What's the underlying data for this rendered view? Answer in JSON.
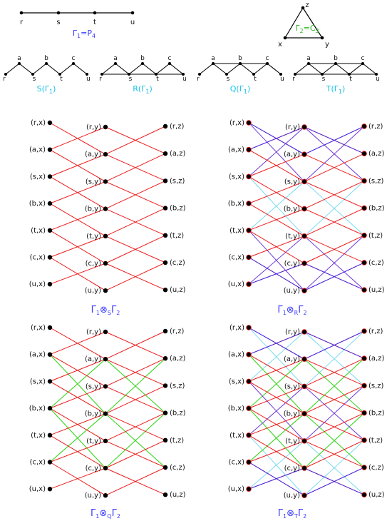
{
  "colors": {
    "red": "#ee1c1c",
    "blue": "#2b2bff",
    "purple": "#7a2bd6",
    "cyan": "#6fd8ef",
    "green": "#37d61e",
    "black": "#000000",
    "label_blue": "#3b3bff",
    "label_cyan": "#19c2e6",
    "label_green": "#2bb81c"
  },
  "p4": {
    "vertices": [
      "r",
      "s",
      "t",
      "u"
    ],
    "caption": "Γ",
    "caption_sub": "1",
    "caption_rest": "=P",
    "caption_rest_sub": "4"
  },
  "c3": {
    "vertices": [
      "z",
      "x",
      "y"
    ],
    "caption": "Γ",
    "caption_sub": "2",
    "caption_rest": "=C",
    "caption_rest_sub": "3"
  },
  "operators": [
    {
      "name": "S",
      "label": "S(Γ",
      "label_sub": "1",
      "label_end": ")",
      "top": [
        "a",
        "b",
        "c"
      ],
      "bottom": [
        "r",
        "s",
        "t",
        "u"
      ]
    },
    {
      "name": "R",
      "label": "R(Γ",
      "label_sub": "1",
      "label_end": ")",
      "top": [
        "a",
        "b",
        "c"
      ],
      "bottom": [
        "r",
        "s",
        "t",
        "u"
      ]
    },
    {
      "name": "Q",
      "label": "Q(Γ",
      "label_sub": "1",
      "label_end": ")",
      "top": [
        "a",
        "b",
        "c"
      ],
      "bottom": [
        "r",
        "s",
        "t",
        "u"
      ]
    },
    {
      "name": "T",
      "label": "T(Γ",
      "label_sub": "1",
      "label_end": ")",
      "top": [
        "a",
        "b",
        "c"
      ],
      "bottom": [
        "r",
        "s",
        "t",
        "u"
      ]
    }
  ],
  "products": [
    {
      "op": "S",
      "col1": [
        "(r,x)",
        "(a,x)",
        "(s,x)",
        "(b,x)",
        "(t,x)",
        "(c,x)",
        "(u,x)"
      ],
      "col2": [
        "(r,y)",
        "(a,y)",
        "(s,y)",
        "(b,y)",
        "(t,y)",
        "(c,y)",
        "(u,y)"
      ],
      "col3": [
        "(r,z)",
        "(a,z)",
        "(s,z)",
        "(b,z)",
        "(t,z)",
        "(c,z)",
        "(u,z)"
      ],
      "caption": "Γ",
      "sub1": "1",
      "otimes": "⊗",
      "opsub": "S",
      "cap2": "Γ",
      "sub2": "2"
    },
    {
      "op": "R",
      "col1": [
        "(r,x)",
        "(a,x)",
        "(s,x)",
        "(b,x)",
        "(t,x)",
        "(c,x)",
        "(u,x)"
      ],
      "col2": [
        "(r,y)",
        "(a,y)",
        "(s,y)",
        "(b,y)",
        "(t,y)",
        "(c,y)",
        "(u,y)"
      ],
      "col3": [
        "(r,z)",
        "(a,z)",
        "(s,z)",
        "(b,z)",
        "(t,z)",
        "(c,z)",
        "(u,z)"
      ],
      "caption": "Γ",
      "sub1": "1",
      "otimes": "⊗",
      "opsub": "R",
      "cap2": "Γ",
      "sub2": "2"
    },
    {
      "op": "Q",
      "col1": [
        "(r,x)",
        "(a,x)",
        "(s,x)",
        "(b,x)",
        "(t,x)",
        "(c,x)",
        "(u,x)"
      ],
      "col2": [
        "(r,y)",
        "(a,y)",
        "(s,y)",
        "(b,y)",
        "(t,y)",
        "(c,y)",
        "(u,y)"
      ],
      "col3": [
        "(r,z)",
        "(a,z)",
        "(s,z)",
        "(b,z)",
        "(t,z)",
        "(c,z)",
        "(u,z)"
      ],
      "caption": "Γ",
      "sub1": "1",
      "otimes": "⊗",
      "opsub": "Q",
      "cap2": "Γ",
      "sub2": "2"
    },
    {
      "op": "T",
      "col1": [
        "(r,x)",
        "(a,x)",
        "(s,x)",
        "(b,x)",
        "(t,x)",
        "(c,x)",
        "(u,x)"
      ],
      "col2": [
        "(r,y)",
        "(a,y)",
        "(s,y)",
        "(b,y)",
        "(t,y)",
        "(c,y)",
        "(u,y)"
      ],
      "col3": [
        "(r,z)",
        "(a,z)",
        "(s,z)",
        "(b,z)",
        "(t,z)",
        "(c,z)",
        "(u,z)"
      ],
      "caption": "Γ",
      "sub1": "1",
      "otimes": "⊗",
      "opsub": "T",
      "cap2": "Γ",
      "sub2": "2"
    }
  ]
}
